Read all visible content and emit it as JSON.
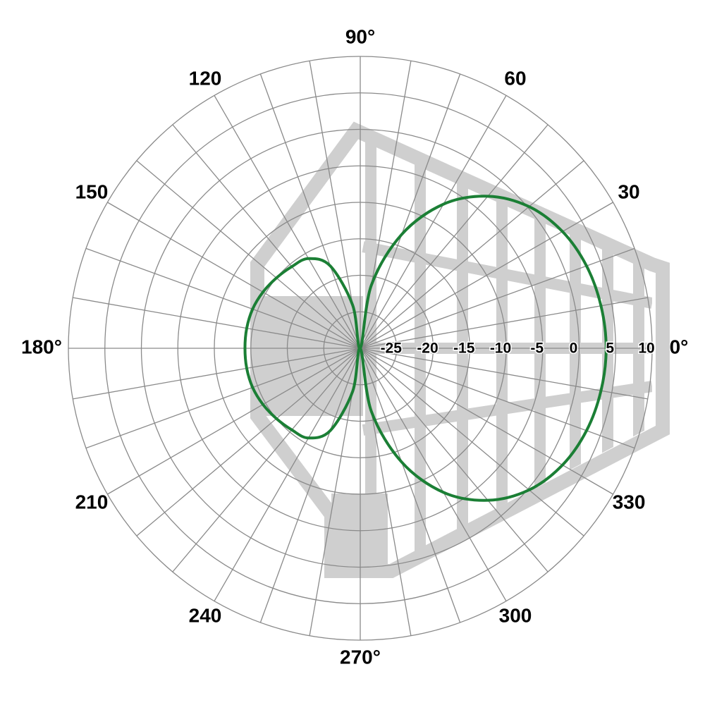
{
  "chart_data": {
    "type": "polar",
    "x": [
      0,
      10,
      20,
      30,
      40,
      50,
      60,
      70,
      80,
      90,
      100,
      110,
      120,
      130,
      140,
      150,
      160,
      170,
      180,
      190,
      200,
      210,
      220,
      230,
      240,
      250,
      260,
      270,
      280,
      290,
      300,
      310,
      320,
      330,
      340,
      350
    ],
    "values": [
      3.7,
      3.5,
      3.0,
      2.0,
      0.2,
      -2.8,
      -7.2,
      -13.4,
      -21.2,
      -30,
      -24,
      -18,
      -15.8,
      -15.4,
      -15,
      -14.6,
      -14.3,
      -14.2,
      -14.2,
      -14.2,
      -14.3,
      -14.6,
      -15,
      -15.4,
      -15.8,
      -18,
      -24,
      -30,
      -21.2,
      -13.4,
      -7.2,
      -2.8,
      0.2,
      2.0,
      3.0,
      3.5
    ],
    "color": "#1b7f35",
    "rlim": [
      -30,
      10
    ],
    "rticks": [
      -25,
      -20,
      -15,
      -10,
      -5,
      0,
      5,
      10
    ],
    "thetaticks": [
      {
        "value": 0,
        "label": "0°"
      },
      30,
      60,
      {
        "value": 90,
        "label": "90°"
      },
      120,
      150,
      {
        "value": 180,
        "label": "180°"
      },
      210,
      240,
      {
        "value": 270,
        "label": "270°"
      },
      300,
      330
    ],
    "grid": true
  }
}
